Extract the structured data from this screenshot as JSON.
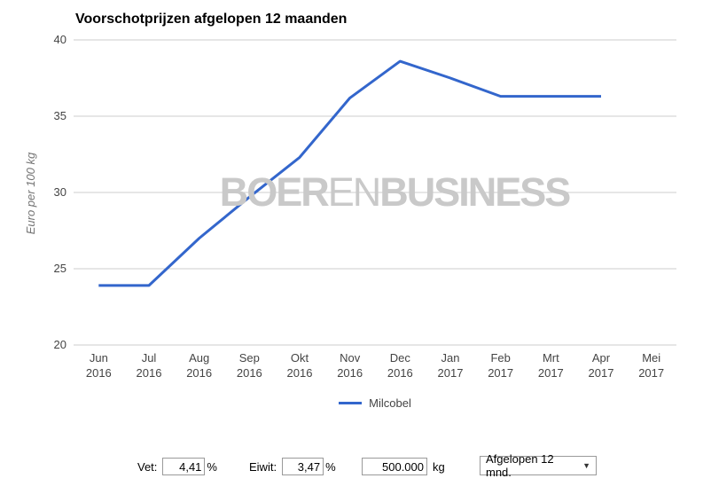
{
  "chart_data": {
    "type": "line",
    "title": "Voorschotprijzen afgelopen 12 maanden",
    "ylabel": "Euro per 100 kg",
    "xlabel": "",
    "ylim": [
      20,
      40
    ],
    "ytick_step": 5,
    "grid": true,
    "legend_position": "bottom",
    "categories": [
      {
        "month": "Jun",
        "year": "2016"
      },
      {
        "month": "Jul",
        "year": "2016"
      },
      {
        "month": "Aug",
        "year": "2016"
      },
      {
        "month": "Sep",
        "year": "2016"
      },
      {
        "month": "Okt",
        "year": "2016"
      },
      {
        "month": "Nov",
        "year": "2016"
      },
      {
        "month": "Dec",
        "year": "2016"
      },
      {
        "month": "Jan",
        "year": "2017"
      },
      {
        "month": "Feb",
        "year": "2017"
      },
      {
        "month": "Mrt",
        "year": "2017"
      },
      {
        "month": "Apr",
        "year": "2017"
      },
      {
        "month": "Mei",
        "year": "2017"
      }
    ],
    "series": [
      {
        "name": "Milcobel",
        "color": "#3366cc",
        "values": [
          23.9,
          23.9,
          27.0,
          29.7,
          32.3,
          36.2,
          38.6,
          37.5,
          36.3,
          36.3,
          36.3,
          null
        ]
      }
    ]
  },
  "watermark": {
    "part1": "BOER",
    "part2": "EN",
    "part3": "BUSINESS"
  },
  "controls": {
    "vet_label": "Vet:",
    "vet_value": "4,41",
    "vet_unit": "%",
    "eiwit_label": "Eiwit:",
    "eiwit_value": "3,47",
    "eiwit_unit": "%",
    "amount_value": "500.000",
    "amount_unit": "kg",
    "period_selected": "Afgelopen 12 mnd.",
    "dropdown_arrow": "▼"
  },
  "colors": {
    "line": "#3366cc",
    "grid": "#cccccc",
    "axis_text": "#444444",
    "watermark": "#c9c9c9"
  }
}
